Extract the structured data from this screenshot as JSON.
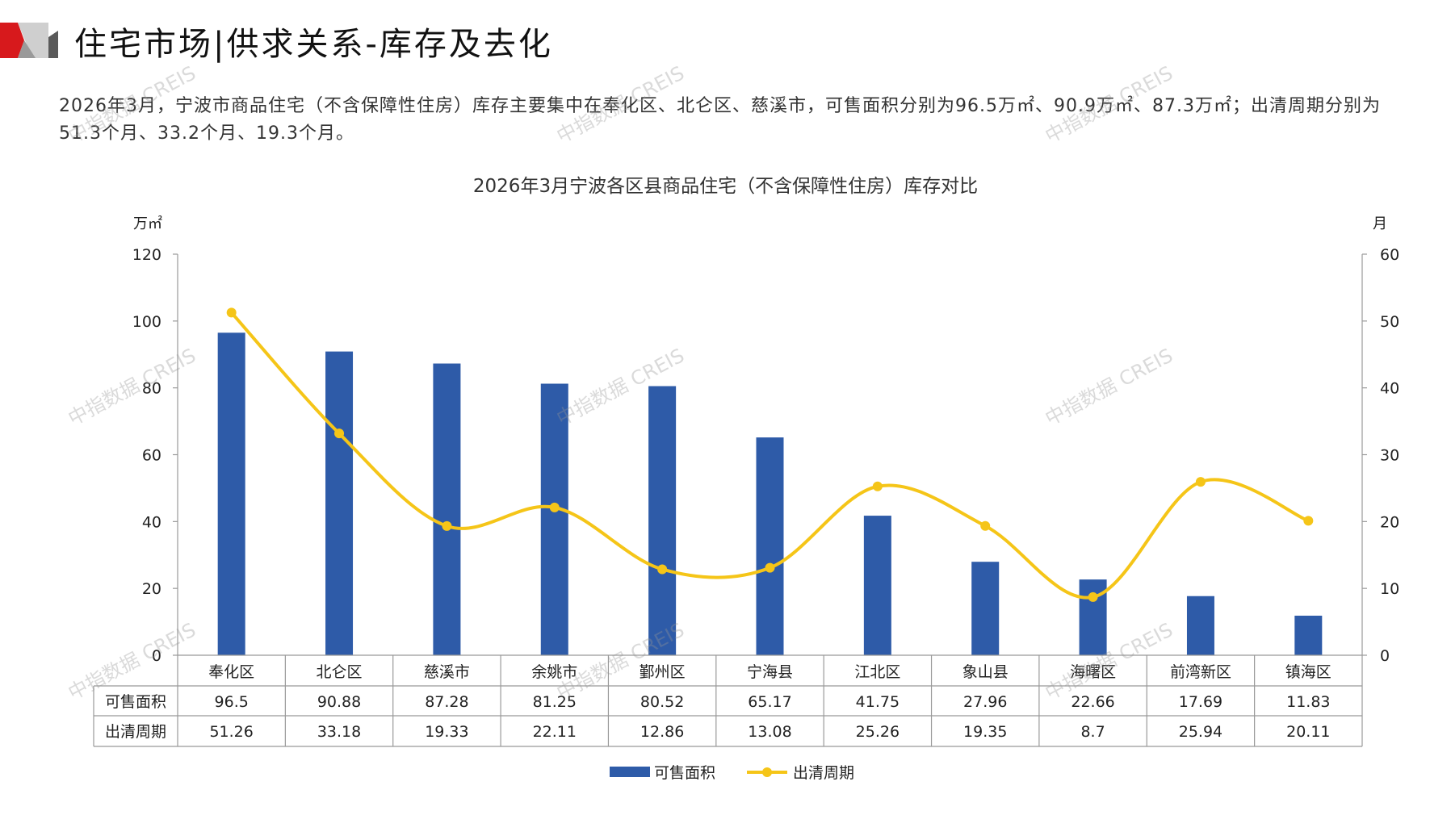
{
  "header": {
    "title": "住宅市场|供求关系-库存及去化"
  },
  "summary": "2026年3月，宁波市商品住宅（不含保障性住房）库存主要集中在奉化区、北仑区、慈溪市，可售面积分别为96.5万㎡、90.9万㎡、87.3万㎡；出清周期分别为51.3个月、33.2个月、19.3个月。",
  "watermark": "中指数据 CREIS",
  "colors": {
    "bar": "#2E5BA8",
    "line": "#F5C518",
    "accent": "#D7191C"
  },
  "chart_data": {
    "type": "bar",
    "title": "2026年3月宁波各区县商品住宅（不含保障性住房）库存对比",
    "categories": [
      "奉化区",
      "北仑区",
      "慈溪市",
      "余姚市",
      "鄞州区",
      "宁海县",
      "江北区",
      "象山县",
      "海曙区",
      "前湾新区",
      "镇海区"
    ],
    "series": [
      {
        "name": "可售面积",
        "type": "bar",
        "axis": "left",
        "values": [
          96.5,
          90.88,
          87.28,
          81.25,
          80.52,
          65.17,
          41.75,
          27.96,
          22.66,
          17.69,
          11.83
        ],
        "labels": [
          "96.5",
          "90.88",
          "87.28",
          "81.25",
          "80.52",
          "65.17",
          "41.75",
          "27.96",
          "22.66",
          "17.69",
          "11.83"
        ]
      },
      {
        "name": "出清周期",
        "type": "line",
        "axis": "right",
        "values": [
          51.26,
          33.18,
          19.33,
          22.11,
          12.86,
          13.08,
          25.26,
          19.35,
          8.7,
          25.94,
          20.11
        ],
        "labels": [
          "51.26",
          "33.18",
          "19.33",
          "22.11",
          "12.86",
          "13.08",
          "25.26",
          "19.35",
          "8.7",
          "25.94",
          "20.11"
        ]
      }
    ],
    "ylabel": "万㎡",
    "y2label": "月",
    "ylim": [
      0,
      120
    ],
    "y2lim": [
      0,
      60
    ],
    "yticks": [
      "0",
      "20",
      "40",
      "60",
      "80",
      "100",
      "120"
    ],
    "y2ticks": [
      "0",
      "10",
      "20",
      "30",
      "40",
      "50",
      "60"
    ],
    "legend": "bottom",
    "grid": false
  }
}
